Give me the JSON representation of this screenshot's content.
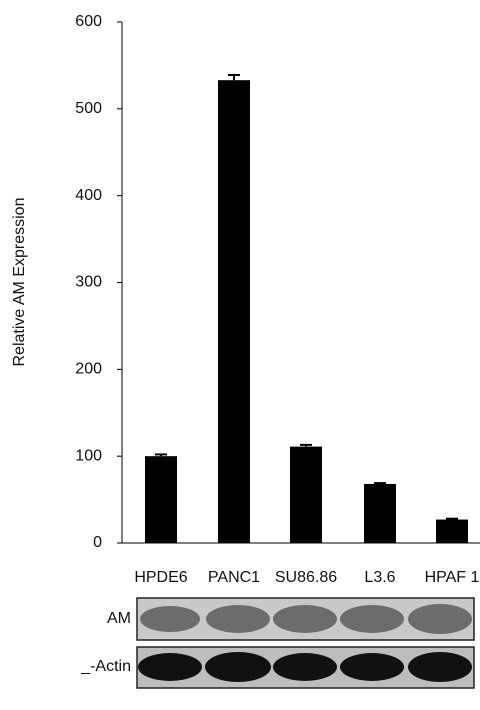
{
  "chart_data": {
    "type": "bar",
    "y_label": "Relative  AM Expression",
    "categories": [
      "HPDE6",
      "PANC1",
      "SU86.86",
      "L3.6",
      "HPAF 1"
    ],
    "values": [
      100,
      533,
      111,
      68,
      27
    ],
    "errors": [
      2,
      6,
      2,
      1,
      1
    ],
    "color": "#000000",
    "ylim": [
      0,
      600
    ],
    "yticks": [
      0,
      100,
      200,
      300,
      400,
      500,
      600
    ]
  },
  "blot": {
    "rows": [
      "AM",
      "_-Actin"
    ]
  }
}
